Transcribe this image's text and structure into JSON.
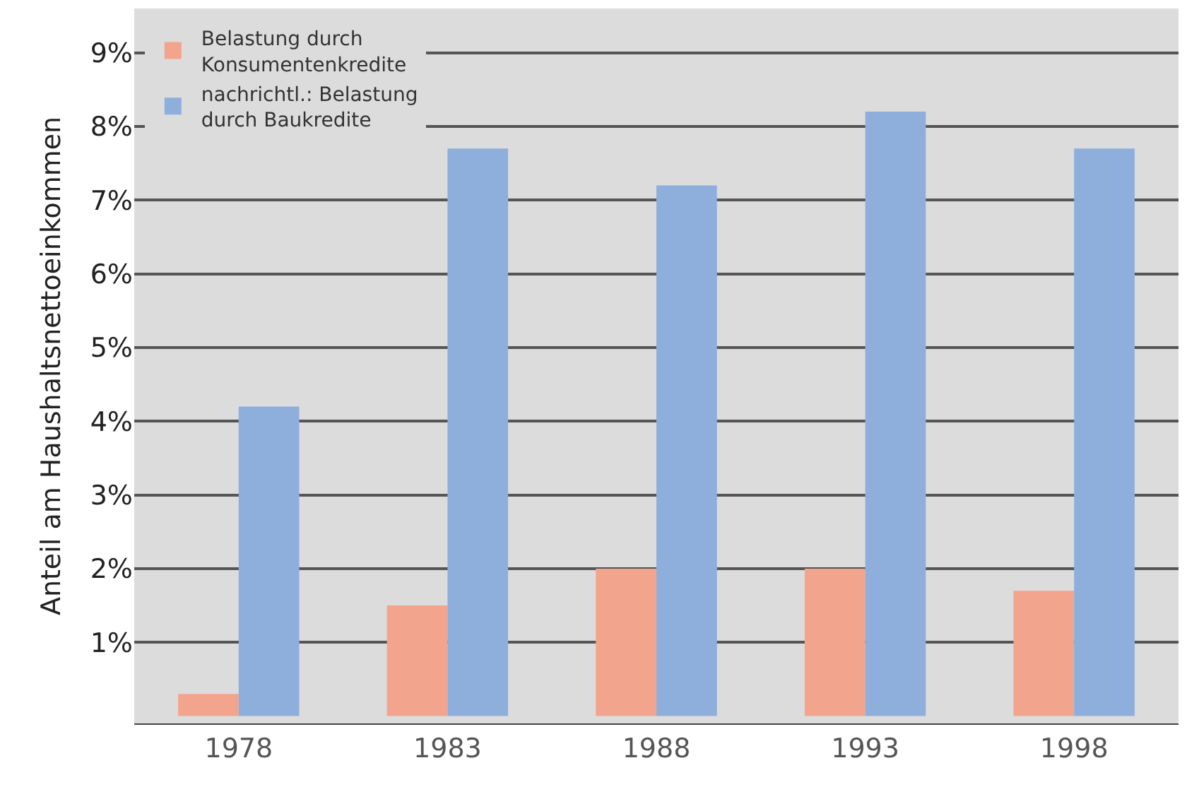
{
  "chart_data": {
    "type": "bar",
    "ylabel": "Anteil am Haushaltsnettoeinkommen",
    "categories": [
      "1978",
      "1983",
      "1988",
      "1993",
      "1998"
    ],
    "series": [
      {
        "name": "Belastung durch Konsumentenkredite",
        "color": "#f2a58c",
        "values": [
          0.3,
          1.5,
          2.0,
          2.0,
          1.7
        ]
      },
      {
        "name": "nachrichtl.: Belastung durch Baukredite",
        "color": "#8eafdc",
        "values": [
          4.2,
          7.7,
          7.2,
          8.2,
          7.7
        ]
      }
    ],
    "ylim": [
      -0.1,
      9.6
    ],
    "yticks": [
      {
        "value": 1,
        "label": "1%"
      },
      {
        "value": 2,
        "label": "2%"
      },
      {
        "value": 3,
        "label": "3%"
      },
      {
        "value": 4,
        "label": "4%"
      },
      {
        "value": 5,
        "label": "5%"
      },
      {
        "value": 6,
        "label": "6%"
      },
      {
        "value": 7,
        "label": "7%"
      },
      {
        "value": 8,
        "label": "8%"
      },
      {
        "value": 9,
        "label": "9%"
      }
    ],
    "grid": "y",
    "legend": "top left"
  }
}
